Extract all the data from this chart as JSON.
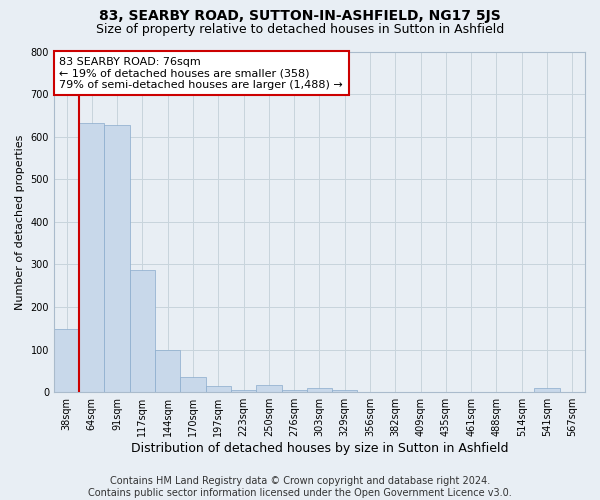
{
  "title": "83, SEARBY ROAD, SUTTON-IN-ASHFIELD, NG17 5JS",
  "subtitle": "Size of property relative to detached houses in Sutton in Ashfield",
  "xlabel": "Distribution of detached houses by size in Sutton in Ashfield",
  "ylabel": "Number of detached properties",
  "footer_line1": "Contains HM Land Registry data © Crown copyright and database right 2024.",
  "footer_line2": "Contains public sector information licensed under the Open Government Licence v3.0.",
  "annotation_title": "83 SEARBY ROAD: 76sqm",
  "annotation_line1": "← 19% of detached houses are smaller (358)",
  "annotation_line2": "79% of semi-detached houses are larger (1,488) →",
  "bar_labels": [
    "38sqm",
    "64sqm",
    "91sqm",
    "117sqm",
    "144sqm",
    "170sqm",
    "197sqm",
    "223sqm",
    "250sqm",
    "276sqm",
    "303sqm",
    "329sqm",
    "356sqm",
    "382sqm",
    "409sqm",
    "435sqm",
    "461sqm",
    "488sqm",
    "514sqm",
    "541sqm",
    "567sqm"
  ],
  "bar_values": [
    148,
    632,
    627,
    288,
    100,
    35,
    14,
    6,
    17,
    5,
    10,
    5,
    0,
    1,
    0,
    1,
    0,
    0,
    0,
    10,
    0
  ],
  "bar_color": "#c8d8ea",
  "bar_edge_color": "#8aabcc",
  "vline_color": "#cc0000",
  "vline_x": 1.5,
  "annotation_box_facecolor": "#ffffff",
  "annotation_box_edgecolor": "#cc0000",
  "background_color": "#e8eef4",
  "plot_bg_color": "#e8eef4",
  "ylim": [
    0,
    800
  ],
  "yticks": [
    0,
    100,
    200,
    300,
    400,
    500,
    600,
    700,
    800
  ],
  "grid_color": "#c8d4dc",
  "title_fontsize": 10,
  "subtitle_fontsize": 9,
  "xlabel_fontsize": 9,
  "ylabel_fontsize": 8,
  "tick_fontsize": 7,
  "footer_fontsize": 7,
  "annotation_fontsize": 8
}
